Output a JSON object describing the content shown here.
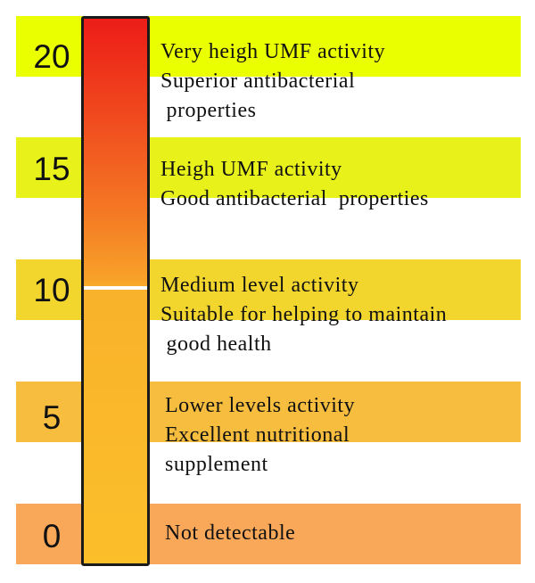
{
  "levels": [
    {
      "value": "20",
      "lines": [
        "Very heigh UMF activity",
        "Superior  antibacterial",
        " properties"
      ]
    },
    {
      "value": "15",
      "lines": [
        "Heigh UMF activity",
        "Good antibacterial  properties"
      ]
    },
    {
      "value": "10",
      "lines": [
        "Medium level activity",
        "Suitable for helping to maintain",
        " good health"
      ]
    },
    {
      "value": "5",
      "lines": [
        "Lower levels activity",
        "Excellent nutritional",
        "supplement"
      ]
    },
    {
      "value": "0",
      "lines": [
        "Not detectable"
      ]
    }
  ],
  "meter": {
    "colors": {
      "top": "#ed1c17",
      "middle": "#f47a24",
      "bottom": "#fbbf2a"
    },
    "threshold_level": 10
  }
}
